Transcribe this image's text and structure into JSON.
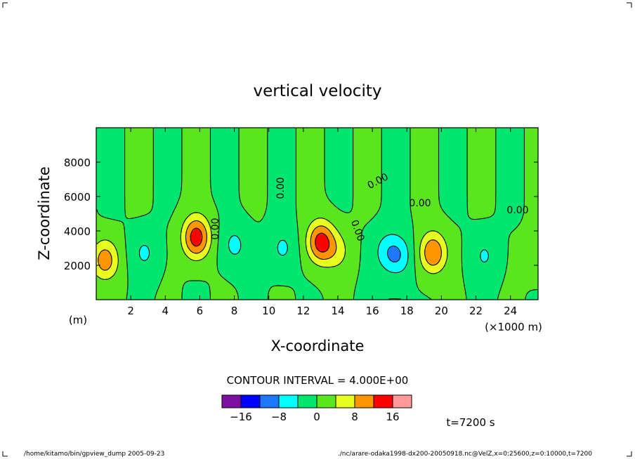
{
  "chart_data": {
    "type": "contour",
    "title": "vertical velocity",
    "xlabel": "X-coordinate",
    "ylabel": "Z-coordinate",
    "x_unit_label": "(×1000 m)",
    "y_unit_label": "(m)",
    "xlim": [
      0,
      25.6
    ],
    "ylim": [
      0,
      10000
    ],
    "x_ticks": [
      2,
      4,
      6,
      8,
      10,
      12,
      14,
      16,
      18,
      20,
      22,
      24
    ],
    "y_ticks": [
      2000,
      4000,
      6000,
      8000
    ],
    "contour_interval_text": "CONTOUR INTERVAL = 4.000E+00",
    "contour_labels": [
      "0.00",
      "0.00",
      "0.00",
      "0.00",
      "0.00",
      "0.00"
    ],
    "colorbar": {
      "levels": [
        -20,
        -16,
        -12,
        -8,
        -4,
        0,
        4,
        8,
        12,
        16,
        20
      ],
      "colors": [
        "#7f0fa0",
        "#0000ff",
        "#1e78ff",
        "#00ffff",
        "#00e66e",
        "#5ae61e",
        "#e6ff1e",
        "#ff9600",
        "#ff0000",
        "#ff9a9a"
      ],
      "tick_labels": [
        {
          "value": -16,
          "label": "−16"
        },
        {
          "value": -8,
          "label": "−8"
        },
        {
          "value": 0,
          "label": "0"
        },
        {
          "value": 8,
          "label": "8"
        },
        {
          "value": 16,
          "label": "16"
        }
      ]
    },
    "cells": [
      {
        "x": 0.5,
        "z": 2000,
        "w": 16
      },
      {
        "x": 2.8,
        "z": 2500,
        "w": -6
      },
      {
        "x": 5.8,
        "z": 3500,
        "w": 16
      },
      {
        "x": 8.0,
        "z": 3000,
        "w": -6
      },
      {
        "x": 10.8,
        "z": 2800,
        "w": -6
      },
      {
        "x": 13.0,
        "z": 3200,
        "w": 16
      },
      {
        "x": 14.0,
        "z": 2600,
        "w": 6
      },
      {
        "x": 16.8,
        "z": 2600,
        "w": -6
      },
      {
        "x": 17.5,
        "z": 2300,
        "w": -10
      },
      {
        "x": 19.5,
        "z": 2500,
        "w": 16
      },
      {
        "x": 22.5,
        "z": 2300,
        "w": -6
      },
      {
        "x": 25.6,
        "z": 2400,
        "w": 4
      }
    ]
  },
  "annotations": {
    "time": "t=7200 s",
    "footer_left": "/home/kitamo/bin/gpview_dump  2005-09-23",
    "footer_right": "./nc/arare-odaka1998-dx200-20050918.nc@VelZ,x=0:25600,z=0:10000,t=7200"
  }
}
